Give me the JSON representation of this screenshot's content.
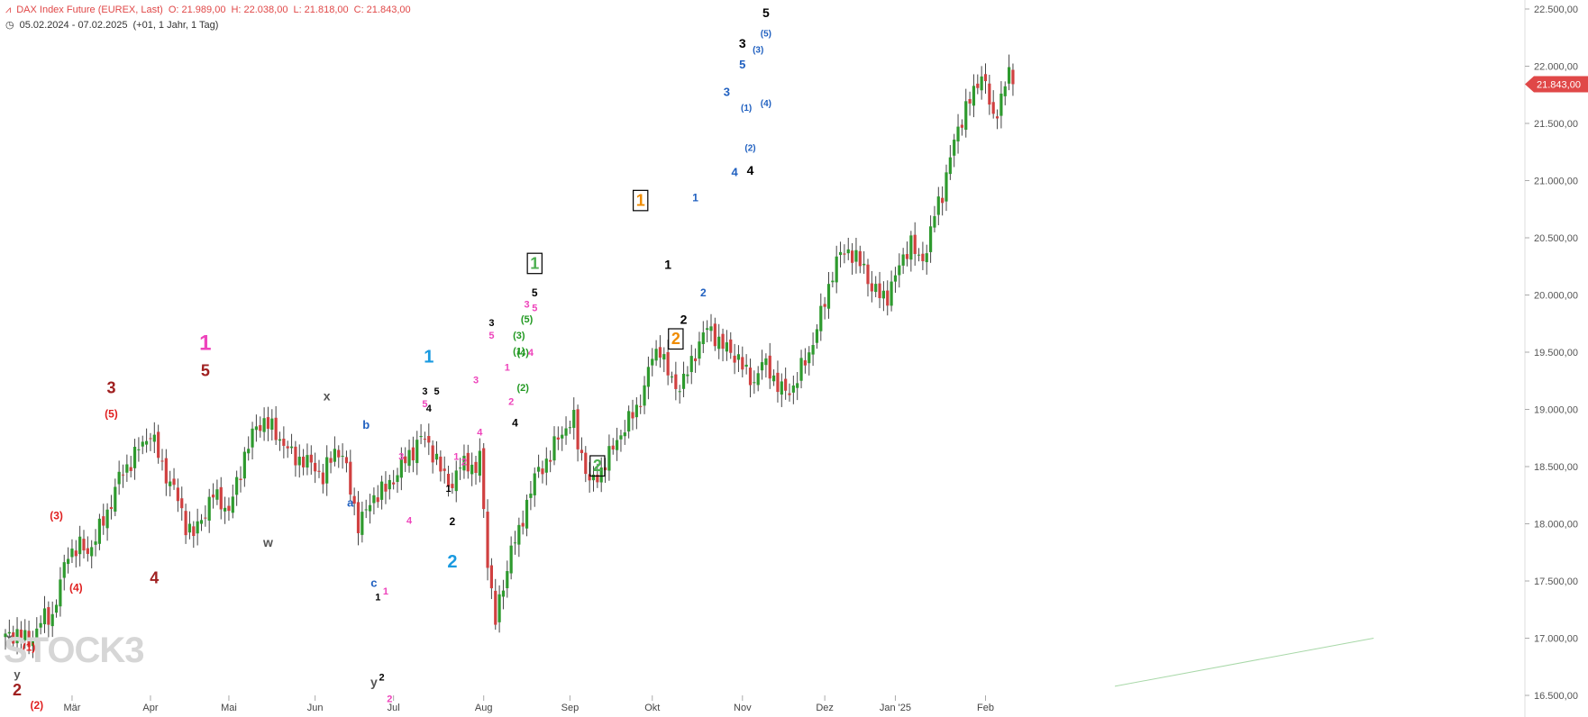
{
  "header": {
    "instrument": "DAX Index Future (EUREX, Last)",
    "open": "O: 21.989,00",
    "high": "H: 22.038,00",
    "low": "L: 21.818,00",
    "close": "C: 21.843,00",
    "range": "05.02.2024 - 07.02.2025",
    "interval": "(+01, 1 Jahr, 1 Tag)"
  },
  "logo_text": "STOCK3",
  "colors": {
    "up": "#2e9a2e",
    "down": "#d04040",
    "axis_text": "#555555",
    "last_price_bg": "#e04848",
    "trend_line": "#a8d8a8"
  },
  "chart_data": {
    "type": "candlestick",
    "y_axis": {
      "min": 16500,
      "max": 22500,
      "ticks": [
        16500,
        17000,
        17500,
        18000,
        18500,
        19000,
        19500,
        20000,
        20500,
        21000,
        21500,
        22000,
        22500
      ],
      "tick_labels": [
        "16.500,00",
        "17.000,00",
        "17.500,00",
        "18.000,00",
        "18.500,00",
        "19.000,00",
        "19.500,00",
        "20.000,00",
        "20.500,00",
        "21.000,00",
        "21.500,00",
        "22.000,00",
        "22.500,00"
      ],
      "position": "right"
    },
    "x_axis": {
      "labels": [
        {
          "label": "Mär",
          "bar": 17
        },
        {
          "label": "Apr",
          "bar": 37
        },
        {
          "label": "Mai",
          "bar": 57
        },
        {
          "label": "Jun",
          "bar": 79
        },
        {
          "label": "Jul",
          "bar": 99
        },
        {
          "label": "Aug",
          "bar": 122
        },
        {
          "label": "Sep",
          "bar": 144
        },
        {
          "label": "Okt",
          "bar": 165
        },
        {
          "label": "Nov",
          "bar": 188
        },
        {
          "label": "Dez",
          "bar": 209
        },
        {
          "label": "Jan '25",
          "bar": 227
        },
        {
          "label": "Feb",
          "bar": 250
        }
      ],
      "total_bars": 254,
      "future_bars": 95
    },
    "grid": false,
    "last_price": {
      "value": 21843,
      "label": "21.843,00"
    },
    "trend_line": {
      "from": {
        "bar": 283,
        "value": 16580
      },
      "to": {
        "bar": 349,
        "value": 17000
      }
    },
    "anchors": [
      [
        0,
        17000
      ],
      [
        3,
        17050
      ],
      [
        6,
        16950
      ],
      [
        9,
        17150
      ],
      [
        12,
        17200
      ],
      [
        16,
        17750
      ],
      [
        19,
        17800
      ],
      [
        21,
        17750
      ],
      [
        24,
        17950
      ],
      [
        26,
        18100
      ],
      [
        29,
        18400
      ],
      [
        32,
        18550
      ],
      [
        35,
        18700
      ],
      [
        37,
        18800
      ],
      [
        40,
        18500
      ],
      [
        43,
        18300
      ],
      [
        46,
        18000
      ],
      [
        48,
        17900
      ],
      [
        50,
        18050
      ],
      [
        53,
        18250
      ],
      [
        55,
        18200
      ],
      [
        57,
        18100
      ],
      [
        59,
        18350
      ],
      [
        61,
        18600
      ],
      [
        64,
        18850
      ],
      [
        66,
        18900
      ],
      [
        70,
        18750
      ],
      [
        73,
        18600
      ],
      [
        76,
        18550
      ],
      [
        79,
        18500
      ],
      [
        81,
        18400
      ],
      [
        84,
        18650
      ],
      [
        86,
        18600
      ],
      [
        88,
        18300
      ],
      [
        90,
        18000
      ],
      [
        92,
        18100
      ],
      [
        94,
        18250
      ],
      [
        97,
        18300
      ],
      [
        99,
        18400
      ],
      [
        102,
        18550
      ],
      [
        104,
        18650
      ],
      [
        106,
        18750
      ],
      [
        108,
        18700
      ],
      [
        110,
        18550
      ],
      [
        112,
        18400
      ],
      [
        114,
        18350
      ],
      [
        116,
        18500
      ],
      [
        118,
        18550
      ],
      [
        120,
        18450
      ],
      [
        121,
        18600
      ],
      [
        122,
        18100
      ],
      [
        123,
        17700
      ],
      [
        124,
        17400
      ],
      [
        125,
        17150
      ],
      [
        127,
        17450
      ],
      [
        129,
        17800
      ],
      [
        131,
        17900
      ],
      [
        133,
        18200
      ],
      [
        135,
        18400
      ],
      [
        137,
        18500
      ],
      [
        139,
        18600
      ],
      [
        141,
        18750
      ],
      [
        143,
        18850
      ],
      [
        145,
        18900
      ],
      [
        146,
        18700
      ],
      [
        148,
        18500
      ],
      [
        149,
        18350
      ],
      [
        151,
        18400
      ],
      [
        153,
        18550
      ],
      [
        155,
        18650
      ],
      [
        157,
        18800
      ],
      [
        159,
        18900
      ],
      [
        161,
        19000
      ],
      [
        163,
        19200
      ],
      [
        165,
        19450
      ],
      [
        167,
        19550
      ],
      [
        169,
        19300
      ],
      [
        171,
        19200
      ],
      [
        173,
        19250
      ],
      [
        175,
        19400
      ],
      [
        177,
        19600
      ],
      [
        179,
        19700
      ],
      [
        181,
        19650
      ],
      [
        183,
        19550
      ],
      [
        185,
        19500
      ],
      [
        187,
        19450
      ],
      [
        189,
        19300
      ],
      [
        191,
        19250
      ],
      [
        193,
        19400
      ],
      [
        195,
        19350
      ],
      [
        197,
        19200
      ],
      [
        199,
        19150
      ],
      [
        201,
        19200
      ],
      [
        203,
        19350
      ],
      [
        205,
        19500
      ],
      [
        207,
        19700
      ],
      [
        209,
        19950
      ],
      [
        211,
        20200
      ],
      [
        213,
        20350
      ],
      [
        215,
        20400
      ],
      [
        217,
        20300
      ],
      [
        219,
        20250
      ],
      [
        221,
        20050
      ],
      [
        223,
        20000
      ],
      [
        225,
        20000
      ],
      [
        227,
        20150
      ],
      [
        229,
        20350
      ],
      [
        231,
        20450
      ],
      [
        233,
        20300
      ],
      [
        235,
        20400
      ],
      [
        237,
        20700
      ],
      [
        239,
        20900
      ],
      [
        241,
        21200
      ],
      [
        243,
        21450
      ],
      [
        245,
        21650
      ],
      [
        247,
        21750
      ],
      [
        249,
        21950
      ],
      [
        250,
        21850
      ],
      [
        252,
        21500
      ],
      [
        254,
        21750
      ],
      [
        256,
        21950
      ],
      [
        257,
        21843
      ]
    ],
    "wave_labels": [
      {
        "t": "x",
        "bar": 1,
        "price": 16970,
        "c": "#555555",
        "s": 13
      },
      {
        "t": "y",
        "bar": 3,
        "price": 16650,
        "c": "#555555",
        "s": 13
      },
      {
        "t": "2",
        "bar": 3,
        "price": 16500,
        "c": "#a02020",
        "s": 18
      },
      {
        "t": "(1)",
        "bar": 6,
        "price": 16890,
        "c": "#e02020",
        "s": 12
      },
      {
        "t": "(2)",
        "bar": 8,
        "price": 16380,
        "c": "#e02020",
        "s": 12
      },
      {
        "t": "(3)",
        "bar": 13,
        "price": 18040,
        "c": "#e02020",
        "s": 12
      },
      {
        "t": "(4)",
        "bar": 18,
        "price": 17410,
        "c": "#e02020",
        "s": 12
      },
      {
        "t": "3",
        "bar": 27,
        "price": 19140,
        "c": "#a02020",
        "s": 18
      },
      {
        "t": "(5)",
        "bar": 27,
        "price": 18930,
        "c": "#e02020",
        "s": 12
      },
      {
        "t": "4",
        "bar": 38,
        "price": 17480,
        "c": "#a02020",
        "s": 18
      },
      {
        "t": "1",
        "bar": 51,
        "price": 19520,
        "c": "#ee44bb",
        "s": 24
      },
      {
        "t": "5",
        "bar": 51,
        "price": 19290,
        "c": "#a02020",
        "s": 18
      },
      {
        "t": "w",
        "bar": 67,
        "price": 17800,
        "c": "#555555",
        "s": 14
      },
      {
        "t": "x",
        "bar": 82,
        "price": 19080,
        "c": "#555555",
        "s": 14
      },
      {
        "t": "b",
        "bar": 92,
        "price": 18830,
        "c": "#2060c0",
        "s": 13
      },
      {
        "t": "a",
        "bar": 88,
        "price": 18150,
        "c": "#2060c0",
        "s": 13
      },
      {
        "t": "c",
        "bar": 94,
        "price": 17450,
        "c": "#2060c0",
        "s": 13
      },
      {
        "t": "y",
        "bar": 94,
        "price": 16580,
        "c": "#555555",
        "s": 14
      },
      {
        "t": "2",
        "bar": 94,
        "price": 16130,
        "c": "#ee44bb",
        "s": 24
      },
      {
        "t": "1",
        "bar": 95,
        "price": 17330,
        "c": "#000000",
        "s": 11
      },
      {
        "t": "2",
        "bar": 96,
        "price": 16630,
        "c": "#000000",
        "s": 11
      },
      {
        "t": "1",
        "bar": 97,
        "price": 17380,
        "c": "#ee44bb",
        "s": 11
      },
      {
        "t": "2",
        "bar": 98,
        "price": 16440,
        "c": "#ee44bb",
        "s": 11
      },
      {
        "t": "3",
        "bar": 101,
        "price": 18560,
        "c": "#ee44bb",
        "s": 11
      },
      {
        "t": "4",
        "bar": 103,
        "price": 18000,
        "c": "#ee44bb",
        "s": 11
      },
      {
        "t": "1",
        "bar": 108,
        "price": 19410,
        "c": "#1a9ae0",
        "s": 20
      },
      {
        "t": "3",
        "bar": 107,
        "price": 19130,
        "c": "#000000",
        "s": 11
      },
      {
        "t": "5",
        "bar": 107,
        "price": 19020,
        "c": "#ee44bb",
        "s": 11
      },
      {
        "t": "4",
        "bar": 108,
        "price": 18980,
        "c": "#000000",
        "s": 11
      },
      {
        "t": "5",
        "bar": 110,
        "price": 19130,
        "c": "#000000",
        "s": 11
      },
      {
        "t": "1",
        "bar": 113,
        "price": 18280,
        "c": "#000000",
        "s": 11
      },
      {
        "t": "2",
        "bar": 114,
        "price": 17990,
        "c": "#000000",
        "s": 12
      },
      {
        "t": "2",
        "bar": 114,
        "price": 17620,
        "c": "#1a9ae0",
        "s": 20
      },
      {
        "t": "1",
        "bar": 115,
        "price": 18560,
        "c": "#ee44bb",
        "s": 11
      },
      {
        "t": "2",
        "bar": 117,
        "price": 18510,
        "c": "#ee44bb",
        "s": 11
      },
      {
        "t": "3",
        "bar": 120,
        "price": 19230,
        "c": "#ee44bb",
        "s": 11
      },
      {
        "t": "4",
        "bar": 121,
        "price": 18770,
        "c": "#ee44bb",
        "s": 11
      },
      {
        "t": "3",
        "bar": 124,
        "price": 19730,
        "c": "#000000",
        "s": 11
      },
      {
        "t": "5",
        "bar": 124,
        "price": 19620,
        "c": "#ee44bb",
        "s": 11
      },
      {
        "t": "1",
        "bar": 128,
        "price": 19340,
        "c": "#ee44bb",
        "s": 11
      },
      {
        "t": "2",
        "bar": 129,
        "price": 19040,
        "c": "#ee44bb",
        "s": 11
      },
      {
        "t": "4",
        "bar": 130,
        "price": 18850,
        "c": "#000000",
        "s": 12
      },
      {
        "t": "(1)",
        "bar": 131,
        "price": 19480,
        "c": "#229922",
        "s": 11
      },
      {
        "t": "(2)",
        "bar": 132,
        "price": 19160,
        "c": "#229922",
        "s": 11
      },
      {
        "t": "(3)",
        "bar": 131,
        "price": 19620,
        "c": "#229922",
        "s": 11
      },
      {
        "t": "(4)",
        "bar": 132,
        "price": 19470,
        "c": "#229922",
        "s": 11
      },
      {
        "t": "(5)",
        "bar": 133,
        "price": 19760,
        "c": "#229922",
        "s": 11
      },
      {
        "t": "3",
        "bar": 133,
        "price": 19890,
        "c": "#ee44bb",
        "s": 11
      },
      {
        "t": "4",
        "bar": 134,
        "price": 19470,
        "c": "#ee44bb",
        "s": 11
      },
      {
        "t": "5",
        "bar": 135,
        "price": 19860,
        "c": "#ee44bb",
        "s": 11
      },
      {
        "t": "5",
        "bar": 135,
        "price": 19990,
        "c": "#000000",
        "s": 12
      },
      {
        "t": "1",
        "bar": 135,
        "price": 20230,
        "c": "#4caf50",
        "s": 18,
        "box": "#000000"
      },
      {
        "t": "2",
        "bar": 151,
        "price": 18460,
        "c": "#4caf50",
        "s": 18,
        "box": "#000000"
      },
      {
        "t": "1",
        "bar": 162,
        "price": 20780,
        "c": "#f08c00",
        "s": 18,
        "box": "#000000"
      },
      {
        "t": "1",
        "bar": 169,
        "price": 20230,
        "c": "#000000",
        "s": 14
      },
      {
        "t": "2",
        "bar": 171,
        "price": 19570,
        "c": "#f08c00",
        "s": 18,
        "box": "#000000"
      },
      {
        "t": "2",
        "bar": 173,
        "price": 19750,
        "c": "#000000",
        "s": 14
      },
      {
        "t": "1",
        "bar": 176,
        "price": 20820,
        "c": "#2060c0",
        "s": 12
      },
      {
        "t": "2",
        "bar": 178,
        "price": 19990,
        "c": "#2060c0",
        "s": 12
      },
      {
        "t": "3",
        "bar": 184,
        "price": 21740,
        "c": "#2060c0",
        "s": 13
      },
      {
        "t": "4",
        "bar": 186,
        "price": 21040,
        "c": "#2060c0",
        "s": 13
      },
      {
        "t": "3",
        "bar": 188,
        "price": 22160,
        "c": "#000000",
        "s": 14
      },
      {
        "t": "5",
        "bar": 188,
        "price": 21980,
        "c": "#2060c0",
        "s": 13
      },
      {
        "t": "(1)",
        "bar": 189,
        "price": 21610,
        "c": "#2060c0",
        "s": 10
      },
      {
        "t": "(2)",
        "bar": 190,
        "price": 21260,
        "c": "#2060c0",
        "s": 10
      },
      {
        "t": "4",
        "bar": 190,
        "price": 21050,
        "c": "#000000",
        "s": 14
      },
      {
        "t": "(3)",
        "bar": 192,
        "price": 22120,
        "c": "#2060c0",
        "s": 10
      },
      {
        "t": "(4)",
        "bar": 194,
        "price": 21650,
        "c": "#2060c0",
        "s": 10
      },
      {
        "t": "5",
        "bar": 194,
        "price": 22430,
        "c": "#000000",
        "s": 14
      },
      {
        "t": "(5)",
        "bar": 194,
        "price": 22260,
        "c": "#2060c0",
        "s": 10
      }
    ]
  }
}
